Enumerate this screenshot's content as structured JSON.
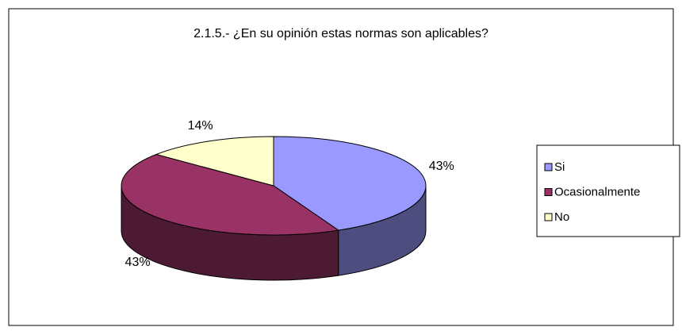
{
  "chart_data": {
    "type": "pie",
    "title": "2.1.5.- ¿En su opinión estas normas son aplicables?",
    "categories": [
      "Si",
      "Ocasionalmente",
      "No"
    ],
    "values": [
      43,
      43,
      14
    ],
    "value_labels": [
      "43%",
      "43%",
      "14%"
    ],
    "colors": [
      "#9999ff",
      "#993366",
      "#ffffcc"
    ],
    "legend": "right"
  }
}
